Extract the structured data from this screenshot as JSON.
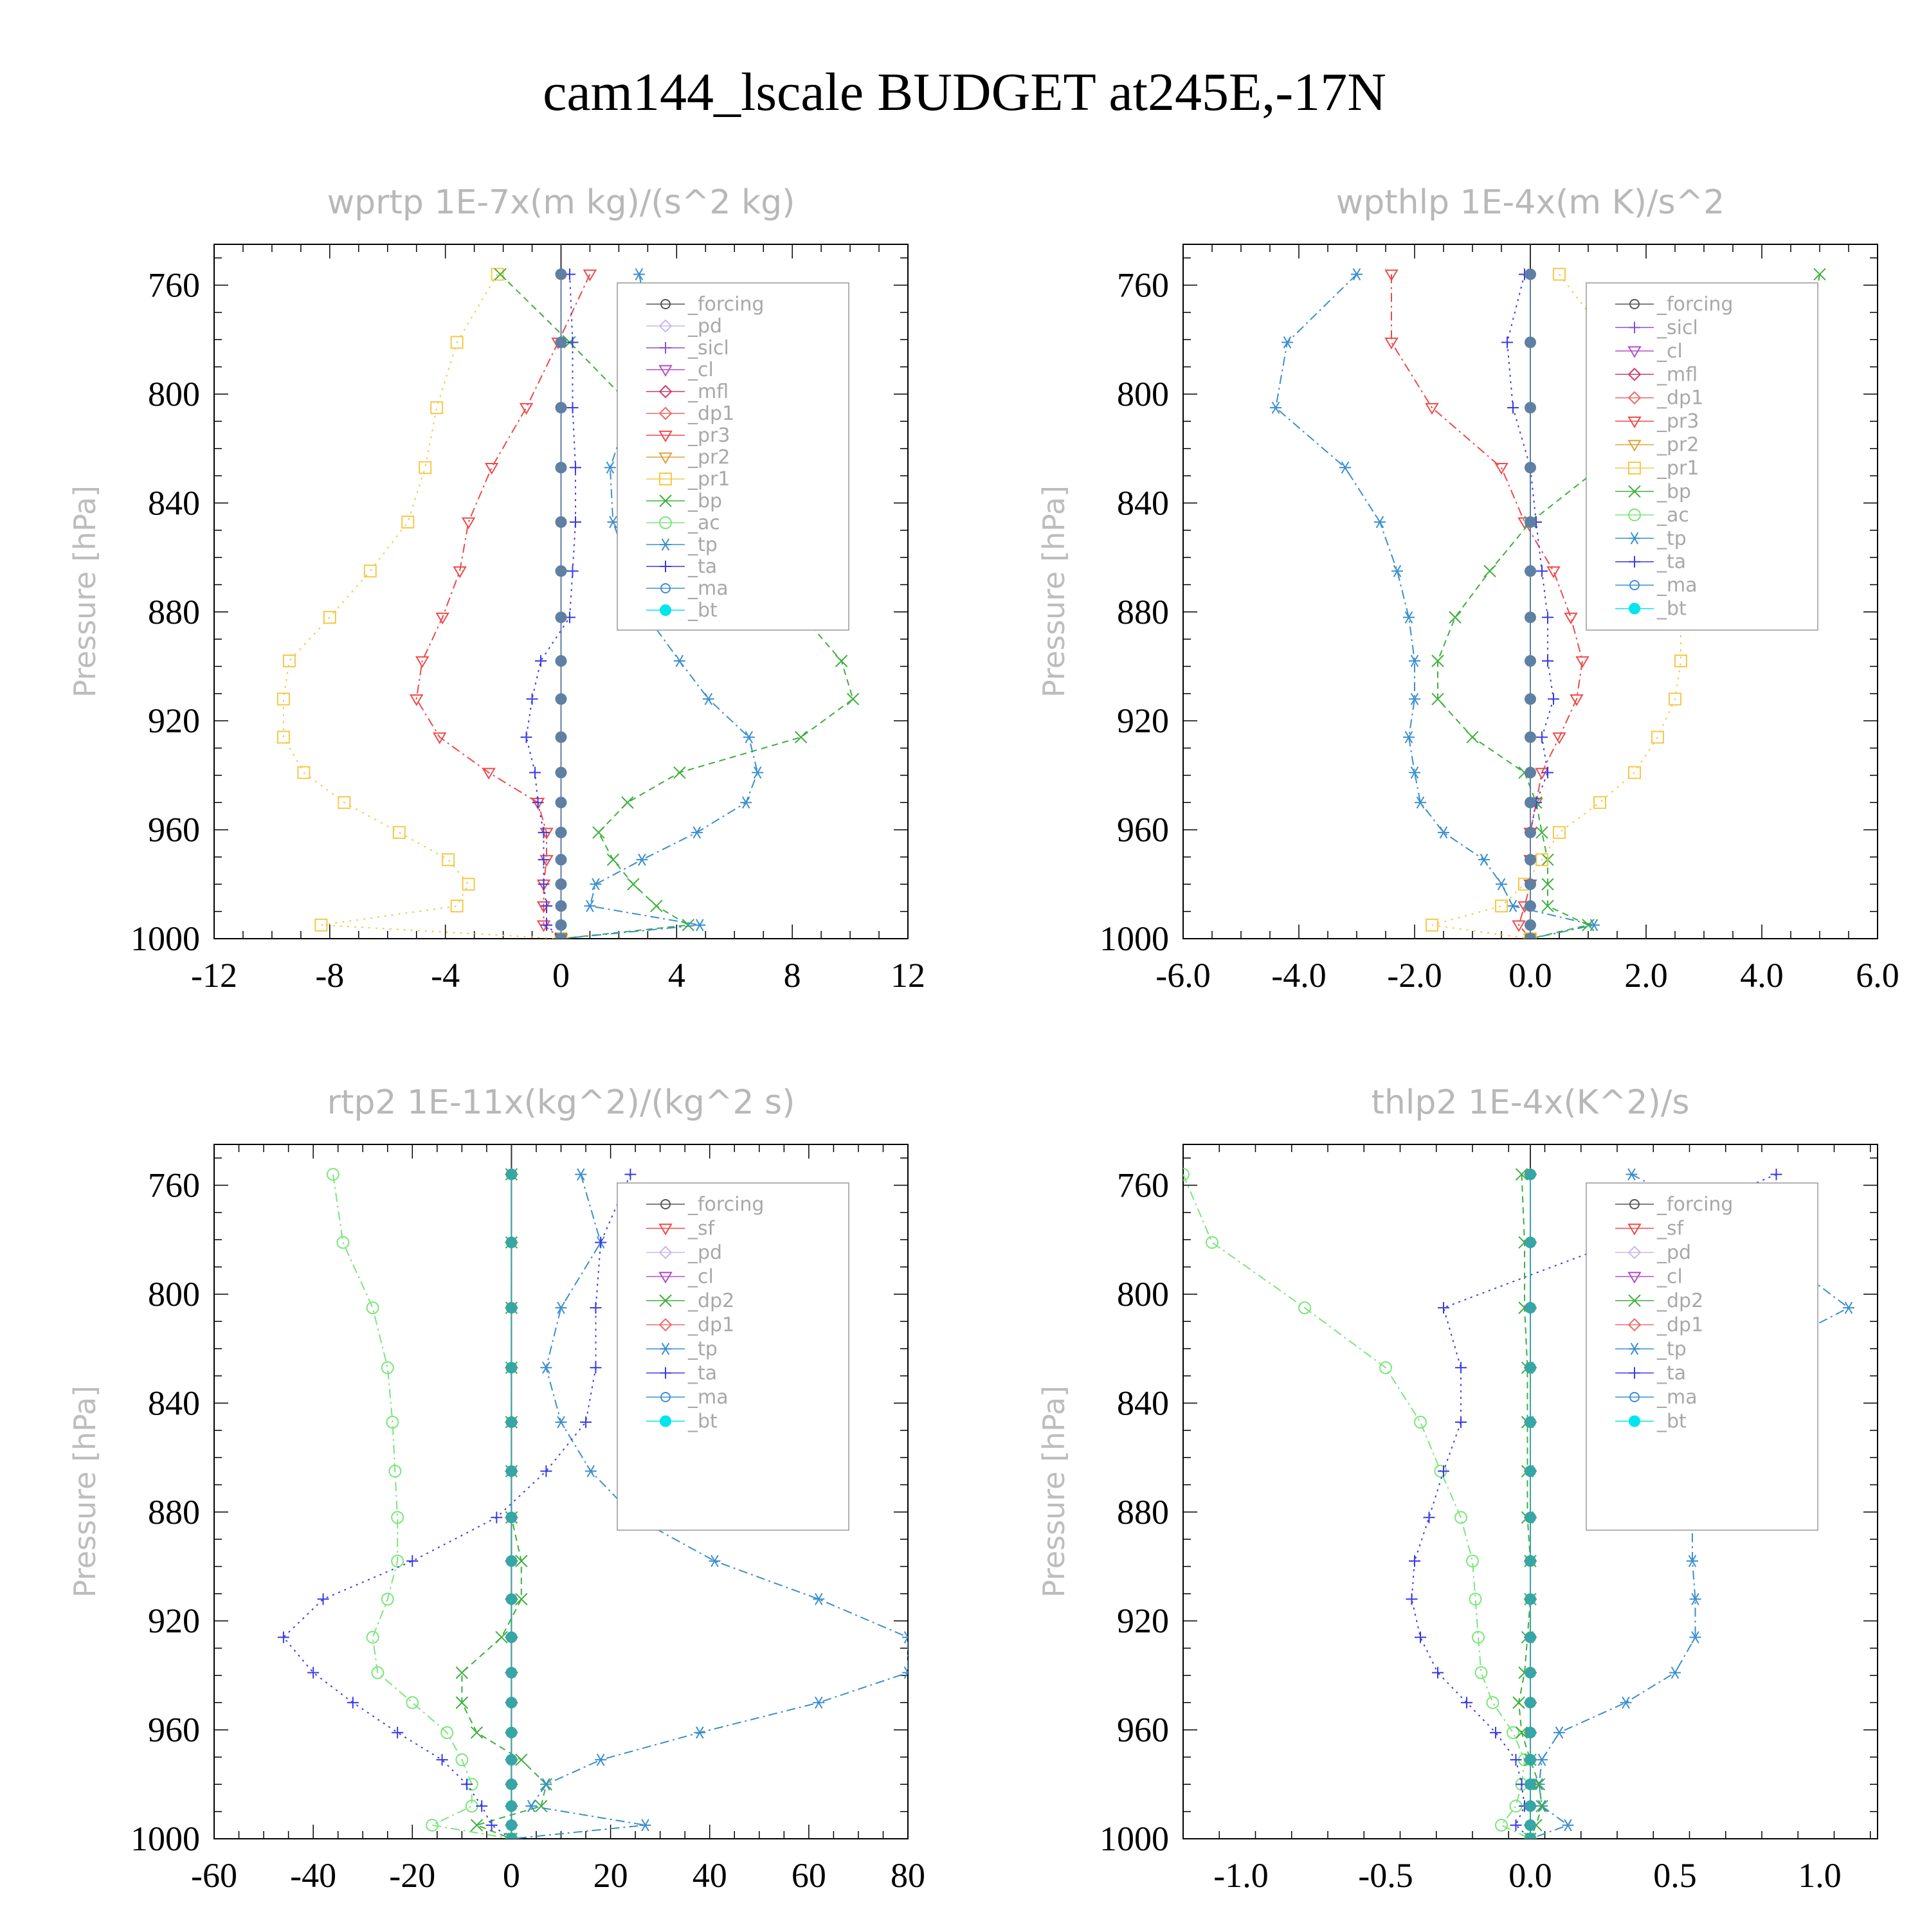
{
  "title": "cam144_lscale  BUDGET at245E,-17N",
  "chart_data": [
    {
      "type": "line",
      "title": "wprtp   1E-7x(m kg)/(s^2 kg)",
      "ylabel": "Pressure [hPa]",
      "xlim": [
        -12,
        12
      ],
      "ylim": [
        1000,
        745
      ],
      "xticks": [
        -12,
        -8,
        -4,
        0,
        4,
        8,
        12
      ],
      "xtick_labels": [
        "-12",
        "-8",
        "-4",
        "0",
        "4",
        "8",
        "12"
      ],
      "yticks": [
        760,
        800,
        840,
        880,
        920,
        960,
        1000
      ],
      "pressure": [
        756,
        781,
        805,
        827,
        847,
        865,
        882,
        898,
        912,
        926,
        939,
        950,
        961,
        971,
        980,
        988,
        995,
        1000
      ],
      "legend": [
        "_forcing",
        "_pd",
        "_sicl",
        "_cl",
        "_mfl",
        "_dp1",
        "_pr3",
        "_pr2",
        "_pr1",
        "_bp",
        "_ac",
        "_tp",
        "_ta",
        "_ma",
        "_bt"
      ],
      "series": [
        {
          "name": "_pr1",
          "color": "#f6c848",
          "marker": "square",
          "dash": "3,8",
          "values": [
            -2.2,
            -3.6,
            -4.3,
            -4.7,
            -5.3,
            -6.6,
            -8,
            -9.4,
            -9.6,
            -9.6,
            -8.9,
            -7.5,
            -5.6,
            -3.9,
            -3.2,
            -3.6,
            -8.3,
            0
          ]
        },
        {
          "name": "_pr3",
          "color": "#ee4a4a",
          "marker": "tri-down",
          "dash": "14,6,3,6",
          "values": [
            1,
            -0.1,
            -1.2,
            -2.4,
            -3.2,
            -3.5,
            -4.1,
            -4.8,
            -5,
            -4.2,
            -2.5,
            -0.8,
            -0.5,
            -0.5,
            -0.6,
            -0.6,
            -0.6,
            0
          ]
        },
        {
          "name": "_bp",
          "color": "#3db03d",
          "marker": "x",
          "dash": "10,7",
          "values": [
            -2.1,
            0.3,
            2.5,
            4.3,
            5.6,
            7,
            8.4,
            9.7,
            10.1,
            8.3,
            4.1,
            2.3,
            1.3,
            1.8,
            2.5,
            3.3,
            4.4,
            0
          ]
        },
        {
          "name": "_tp",
          "color": "#3b8fcf",
          "marker": "asterisk",
          "dash": "14,6,3,6",
          "values": [
            2.7,
            3.2,
            2.4,
            1.7,
            1.8,
            2.4,
            3,
            4.1,
            5.1,
            6.5,
            6.8,
            6.4,
            4.7,
            2.8,
            1.2,
            1,
            4.8,
            0
          ]
        },
        {
          "name": "_ta",
          "color": "#3a3ae6",
          "marker": "plus",
          "dash": "3,7",
          "values": [
            0.3,
            0.4,
            0.4,
            0.5,
            0.5,
            0.4,
            0.3,
            -0.7,
            -1,
            -1.2,
            -0.9,
            -0.8,
            -0.6,
            -0.6,
            -0.6,
            -0.5,
            -0.5,
            0
          ]
        },
        {
          "name": "_forcing",
          "color": "#2a2a2a",
          "marker": "dot",
          "dash": "",
          "values": [
            0,
            0,
            0,
            0,
            0,
            0,
            0,
            0,
            0,
            0,
            0,
            0,
            0,
            0,
            0,
            0,
            0,
            0
          ]
        },
        {
          "name": "_bt",
          "color": "#5f7fa3",
          "marker": "filled",
          "dash": "",
          "values": [
            0,
            0,
            0,
            0,
            0,
            0,
            0,
            0,
            0,
            0,
            0,
            0,
            0,
            0,
            0,
            0,
            0,
            0
          ]
        }
      ]
    },
    {
      "type": "line",
      "title": "wpthlp   1E-4x(m K)/s^2",
      "ylabel": "Pressure [hPa]",
      "xlim": [
        -6,
        6
      ],
      "ylim": [
        1000,
        745
      ],
      "xticks": [
        -6,
        -4,
        -2,
        0,
        2,
        4,
        6
      ],
      "xtick_labels": [
        "-6.0",
        "-4.0",
        "-2.0",
        "0.0",
        "2.0",
        "4.0",
        "6.0"
      ],
      "yticks": [
        760,
        800,
        840,
        880,
        920,
        960,
        1000
      ],
      "pressure": [
        756,
        781,
        805,
        827,
        847,
        865,
        882,
        898,
        912,
        926,
        939,
        950,
        961,
        971,
        980,
        988,
        995,
        1000
      ],
      "legend": [
        "_forcing",
        "_sicl",
        "_cl",
        "_mfl",
        "_dp1",
        "_pr3",
        "_pr2",
        "_pr1",
        "_bp",
        "_ac",
        "_tp",
        "_ta",
        "_ma",
        "_bt"
      ],
      "series": [
        {
          "name": "_tp",
          "color": "#3b8fcf",
          "marker": "asterisk",
          "dash": "14,6,3,6",
          "values": [
            -3,
            -4.2,
            -4.4,
            -3.2,
            -2.6,
            -2.3,
            -2.1,
            -2,
            -2,
            -2.1,
            -2,
            -1.9,
            -1.5,
            -0.8,
            -0.5,
            -0.3,
            1.1,
            0
          ]
        },
        {
          "name": "_pr3",
          "color": "#ee4a4a",
          "marker": "tri-down",
          "dash": "14,6,3,6",
          "values": [
            -2.4,
            -2.4,
            -1.7,
            -0.5,
            -0.1,
            0.4,
            0.7,
            0.9,
            0.8,
            0.5,
            0.2,
            0.1,
            0,
            0,
            0,
            -0.1,
            -0.2,
            0
          ]
        },
        {
          "name": "_bp",
          "color": "#3db03d",
          "marker": "x",
          "dash": "10,7",
          "values": [
            5,
            4.8,
            3,
            1.2,
            0,
            -0.7,
            -1.3,
            -1.6,
            -1.6,
            -1,
            -0.1,
            0.1,
            0.2,
            0.3,
            0.3,
            0.3,
            1,
            0
          ]
        },
        {
          "name": "_pr1",
          "color": "#f6c848",
          "marker": "square",
          "dash": "3,8",
          "values": [
            0.5,
            1.4,
            2.2,
            2.5,
            2.6,
            2.6,
            2.6,
            2.6,
            2.5,
            2.2,
            1.8,
            1.2,
            0.5,
            0.2,
            -0.1,
            -0.5,
            -1.7,
            0
          ]
        },
        {
          "name": "_ta",
          "color": "#3a3ae6",
          "marker": "plus",
          "dash": "3,7",
          "values": [
            -0.1,
            -0.4,
            -0.3,
            0,
            0.1,
            0.2,
            0.3,
            0.3,
            0.4,
            0.2,
            0.3,
            0.1,
            0,
            0,
            0,
            0,
            0,
            0
          ]
        },
        {
          "name": "_bt",
          "color": "#5f7fa3",
          "marker": "filled",
          "dash": "",
          "values": [
            0,
            0,
            0,
            0,
            0,
            0,
            0,
            0,
            0,
            0,
            0,
            0,
            0,
            0,
            0,
            0,
            0,
            0
          ]
        }
      ]
    },
    {
      "type": "line",
      "title": "rtp2   1E-11x(kg^2)/(kg^2 s)",
      "ylabel": "Pressure [hPa]",
      "xlim": [
        -60,
        80
      ],
      "ylim": [
        1000,
        745
      ],
      "xticks": [
        -60,
        -40,
        -20,
        0,
        20,
        40,
        60,
        80
      ],
      "xtick_labels": [
        "-60",
        "-40",
        "-20",
        "0",
        "20",
        "40",
        "60",
        "80"
      ],
      "yticks": [
        760,
        800,
        840,
        880,
        920,
        960,
        1000
      ],
      "pressure": [
        756,
        781,
        805,
        827,
        847,
        865,
        882,
        898,
        912,
        926,
        939,
        950,
        961,
        971,
        980,
        988,
        995,
        1000
      ],
      "legend": [
        "_forcing",
        "_sf",
        "_pd",
        "_cl",
        "_dp2",
        "_dp1",
        "_tp",
        "_ta",
        "_ma",
        "_bt"
      ],
      "series": [
        {
          "name": "_dp1",
          "color": "#7be67b",
          "marker": "circle",
          "dash": "14,6,3,6",
          "values": [
            -36,
            -34,
            -28,
            -25,
            -24,
            -23.5,
            -23,
            -23,
            -25,
            -28,
            -27,
            -20,
            -13,
            -10,
            -8,
            -8,
            -16,
            0
          ]
        },
        {
          "name": "_dp2",
          "color": "#3db03d",
          "marker": "x",
          "dash": "10,7",
          "values": [
            0,
            0,
            0,
            0,
            0,
            0,
            0,
            2,
            2,
            -2,
            -10,
            -10,
            -7,
            2,
            7,
            6,
            -7,
            0
          ]
        },
        {
          "name": "_tp",
          "color": "#3b8fcf",
          "marker": "asterisk",
          "dash": "14,6,3,6",
          "values": [
            14,
            18,
            10,
            7,
            10,
            16,
            25,
            41,
            62,
            80,
            80,
            62,
            38,
            18,
            7,
            4,
            27,
            0
          ]
        },
        {
          "name": "_ta",
          "color": "#3a3ae6",
          "marker": "plus",
          "dash": "3,7",
          "values": [
            24,
            18,
            17,
            17,
            15,
            7,
            -3,
            -20,
            -38,
            -46,
            -40,
            -32,
            -23,
            -14,
            -9,
            -6,
            -4,
            0
          ]
        },
        {
          "name": "_forcing",
          "color": "#ee4a4a",
          "marker": "diamond",
          "dash": "",
          "values": [
            0,
            0,
            0,
            0,
            0,
            0,
            0,
            0,
            0,
            0,
            0,
            0,
            0,
            0,
            0,
            0,
            0,
            0
          ]
        },
        {
          "name": "_bt",
          "color": "#36a6a6",
          "marker": "filled",
          "dash": "",
          "values": [
            0,
            0,
            0,
            0,
            0,
            0,
            0,
            0,
            0,
            0,
            0,
            0,
            0,
            0,
            0,
            0,
            0,
            0
          ]
        }
      ]
    },
    {
      "type": "line",
      "title": "thlp2   1E-4x(K^2)/s",
      "ylabel": "Pressure [hPa]",
      "xlim": [
        -1.2,
        1.2
      ],
      "ylim": [
        1000,
        745
      ],
      "xticks": [
        -1,
        -0.5,
        0,
        0.5,
        1
      ],
      "xtick_labels": [
        "-1.0",
        "-0.5",
        "0.0",
        "0.5",
        "1.0"
      ],
      "yticks": [
        760,
        800,
        840,
        880,
        920,
        960,
        1000
      ],
      "pressure": [
        756,
        781,
        805,
        827,
        847,
        865,
        882,
        898,
        912,
        926,
        939,
        950,
        961,
        971,
        980,
        988,
        995,
        1000
      ],
      "legend": [
        "_forcing",
        "_sf",
        "_pd",
        "_cl",
        "_dp2",
        "_dp1",
        "_tp",
        "_ta",
        "_ma",
        "_bt"
      ],
      "series": [
        {
          "name": "_dp1",
          "color": "#7be67b",
          "marker": "circle",
          "dash": "14,6,3,6",
          "values": [
            -1.2,
            -1.1,
            -0.78,
            -0.5,
            -0.38,
            -0.31,
            -0.24,
            -0.2,
            -0.19,
            -0.18,
            -0.17,
            -0.13,
            -0.06,
            -0.02,
            -0.03,
            -0.05,
            -0.1,
            0
          ]
        },
        {
          "name": "_tp",
          "color": "#3b8fcf",
          "marker": "asterisk",
          "dash": "14,6,3,6",
          "values": [
            0.35,
            0.8,
            1.1,
            0.7,
            0.6,
            0.58,
            0.56,
            0.56,
            0.57,
            0.57,
            0.5,
            0.33,
            0.1,
            0.04,
            0.03,
            0.04,
            0.13,
            0
          ]
        },
        {
          "name": "_ta",
          "color": "#3a3ae6",
          "marker": "plus",
          "dash": "3,7",
          "values": [
            0.85,
            0.3,
            -0.3,
            -0.24,
            -0.24,
            -0.3,
            -0.35,
            -0.4,
            -0.41,
            -0.38,
            -0.32,
            -0.22,
            -0.12,
            -0.05,
            -0.03,
            -0.02,
            -0.05,
            0
          ]
        },
        {
          "name": "_dp2",
          "color": "#3db03d",
          "marker": "x",
          "dash": "10,7",
          "values": [
            -0.03,
            -0.02,
            -0.02,
            -0.01,
            -0.01,
            -0.01,
            -0.01,
            0,
            0,
            -0.01,
            -0.02,
            -0.04,
            -0.03,
            0,
            0.03,
            0.04,
            0.02,
            0
          ]
        },
        {
          "name": "_forcing",
          "color": "#ee4a4a",
          "marker": "diamond",
          "dash": "",
          "values": [
            0,
            0,
            0,
            0,
            0,
            0,
            0,
            0,
            0,
            0,
            0,
            0,
            0,
            0,
            0,
            0,
            0,
            0
          ]
        },
        {
          "name": "_bt",
          "color": "#36a6a6",
          "marker": "filled",
          "dash": "",
          "values": [
            0,
            0,
            0,
            0,
            0,
            0,
            0,
            0,
            0,
            0,
            0,
            0,
            0,
            0,
            0,
            0,
            0,
            0
          ]
        }
      ]
    }
  ]
}
